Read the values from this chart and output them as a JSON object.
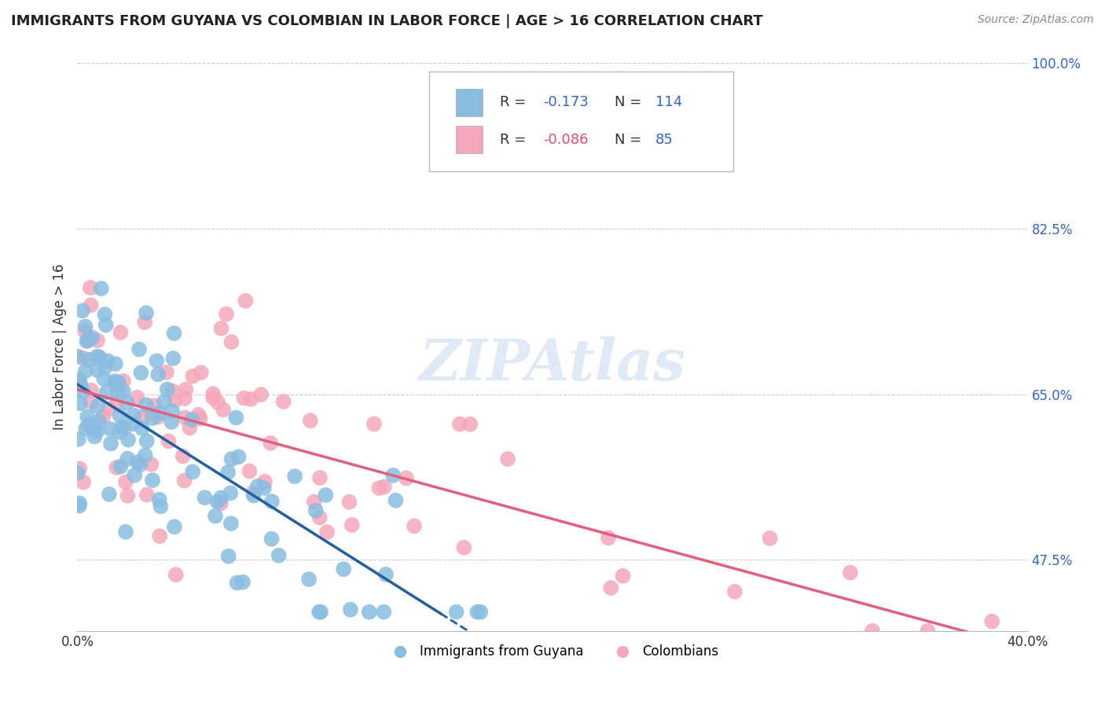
{
  "title": "IMMIGRANTS FROM GUYANA VS COLOMBIAN IN LABOR FORCE | AGE > 16 CORRELATION CHART",
  "source_text": "Source: ZipAtlas.com",
  "ylabel": "In Labor Force | Age > 16",
  "xlim": [
    0.0,
    0.4
  ],
  "ylim": [
    0.4,
    1.0
  ],
  "x_ticks": [
    0.0,
    0.4
  ],
  "x_tick_labels": [
    "0.0%",
    "40.0%"
  ],
  "y_ticks": [
    0.475,
    0.65,
    0.825,
    1.0
  ],
  "y_tick_labels": [
    "47.5%",
    "65.0%",
    "82.5%",
    "100.0%"
  ],
  "guyana_color": "#89bde0",
  "colombian_color": "#f5a8bb",
  "guyana_line_color": "#2060a0",
  "colombian_line_color": "#e06080",
  "guyana_R": -0.173,
  "guyana_N": 114,
  "colombian_R": -0.086,
  "colombian_N": 85,
  "watermark": "ZIPAtlas",
  "background_color": "#ffffff",
  "grid_color": "#cccccc"
}
